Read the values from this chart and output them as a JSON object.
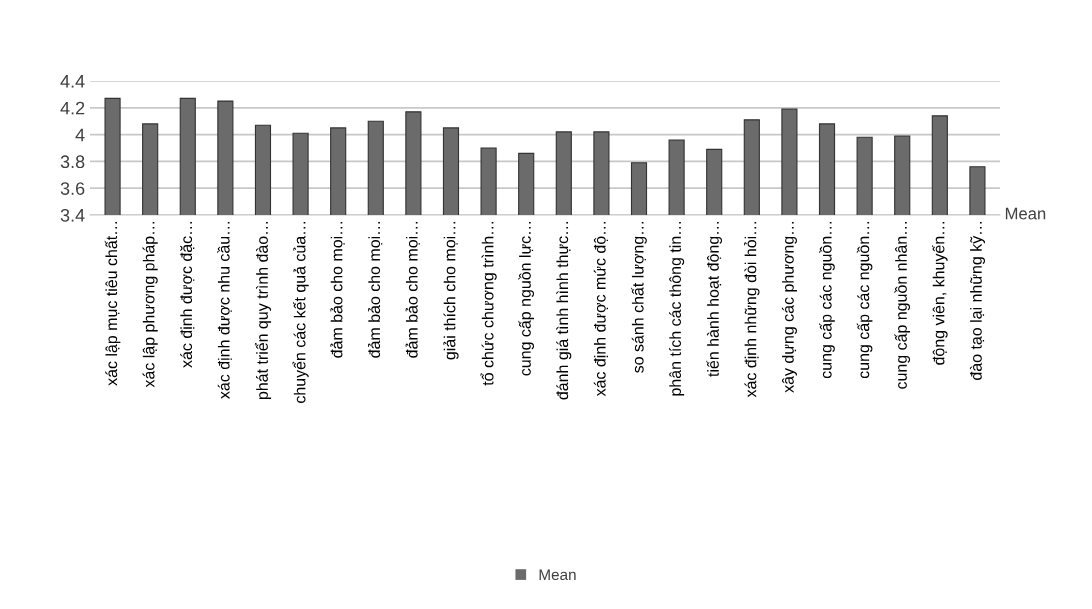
{
  "chart_data": {
    "type": "bar",
    "categories": [
      "xác lập mục tiêu chất…",
      "xác lập phương pháp…",
      "xác định được đặc…",
      "xác định được nhu cầu…",
      "phát triển quy trình đào…",
      "chuyển các kết quả của…",
      "đảm bảo cho mọi…",
      "đảm bảo cho mọi…",
      "đảm bảo cho mọi…",
      "giải thích cho mọi…",
      "tổ chức chương trình…",
      "cung cấp nguồn lực…",
      "đánh giá tình hình thực…",
      "xác định được mức độ…",
      "so sánh chất lượng…",
      "phân tích các thông tin…",
      "tiến hành hoạt động…",
      "xác định những đòi hỏi…",
      "xây dựng các phương…",
      "cung cấp các nguồn…",
      "cung cấp các nguồn…",
      "cung cấp nguồn nhân…",
      "động viên, khuyến…",
      "đào tạo lại những kỹ…"
    ],
    "series": [
      {
        "name": "Mean",
        "color": "#6b6b6b",
        "values": [
          4.27,
          4.08,
          4.27,
          4.25,
          4.07,
          4.01,
          4.05,
          4.1,
          4.17,
          4.05,
          3.9,
          3.86,
          4.02,
          4.02,
          3.79,
          3.96,
          3.89,
          4.11,
          4.19,
          4.08,
          3.98,
          3.99,
          4.14,
          3.76
        ]
      }
    ],
    "ylim": [
      3.4,
      4.4
    ],
    "yticks": [
      3.4,
      3.6,
      3.8,
      4,
      4.2,
      4.4
    ],
    "grid": "y",
    "legend": "bottom",
    "annotations": [
      "Mean"
    ]
  }
}
